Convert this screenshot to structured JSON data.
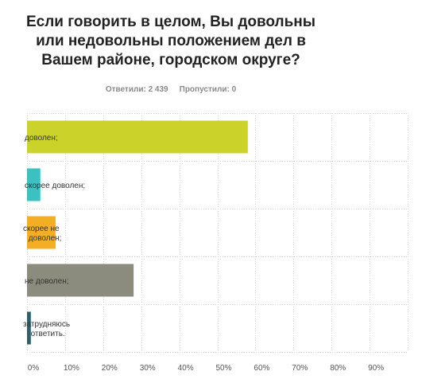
{
  "question": {
    "title_lines": [
      "Если говорить в целом, Вы довольны",
      "или недовольны положением дел в",
      "Вашем районе, городском округе?"
    ],
    "answered_label": "Ответили: 2 439",
    "skipped_label": "Пропустили: 0"
  },
  "chart_data": {
    "type": "bar",
    "orientation": "horizontal",
    "title": "Если говорить в целом, Вы довольны или недовольны положением дел в Вашем районе, городском округе?",
    "categories": [
      [
        "доволен;"
      ],
      [
        "скорее доволен;"
      ],
      [
        "скорее не",
        "доволен;"
      ],
      [
        "не доволен;"
      ],
      [
        "затрудняюсь",
        "ответить."
      ]
    ],
    "values": [
      58,
      3.5,
      7.5,
      28,
      1
    ],
    "colors": [
      "#cbd22a",
      "#3cc1c2",
      "#f4ae24",
      "#8c8c7e",
      "#2e5f6b"
    ],
    "xlim": [
      0,
      100
    ],
    "ticks": [
      0,
      10,
      20,
      30,
      40,
      50,
      60,
      70,
      80,
      90
    ],
    "tick_labels": [
      "0%",
      "10%",
      "20%",
      "30%",
      "40%",
      "50%",
      "60%",
      "70%",
      "80%",
      "90%"
    ],
    "grid": true,
    "xlabel": "",
    "ylabel": ""
  }
}
